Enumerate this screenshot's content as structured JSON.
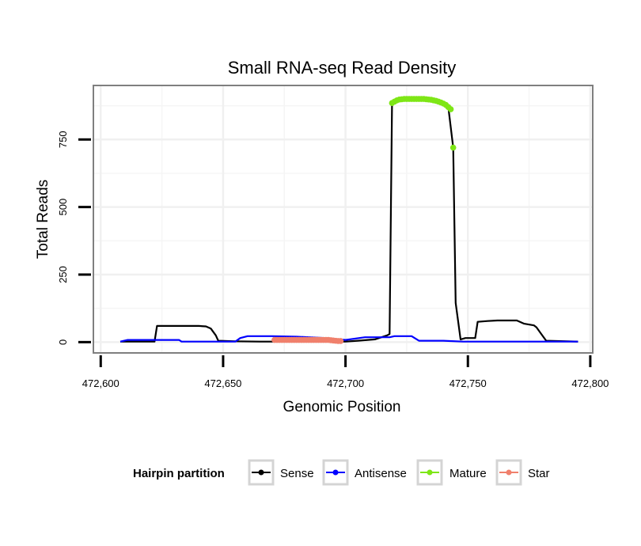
{
  "chart_data": {
    "type": "line",
    "title": "Small RNA-seq Read Density",
    "xlabel": "Genomic Position",
    "ylabel": "Total Reads",
    "xlim": [
      472597,
      472801
    ],
    "ylim": [
      -40,
      950
    ],
    "x_ticks": [
      472600,
      472650,
      472700,
      472750,
      472800
    ],
    "x_tick_labels": [
      "472,600",
      "472,650",
      "472,700",
      "472,750",
      "472,800"
    ],
    "y_ticks": [
      0,
      250,
      500,
      750
    ],
    "y_tick_labels": [
      "0",
      "250",
      "500",
      "750"
    ],
    "grid": true,
    "legend": {
      "title": "Hairpin partition",
      "position": "bottom",
      "entries": [
        "Sense",
        "Antisense",
        "Mature",
        "Star"
      ]
    },
    "series": [
      {
        "name": "Sense",
        "color": "#000000",
        "style": "line-with-dot-legend",
        "points": [
          [
            472608,
            2
          ],
          [
            472622,
            2
          ],
          [
            472623,
            60
          ],
          [
            472630,
            60
          ],
          [
            472640,
            60
          ],
          [
            472643,
            58
          ],
          [
            472645,
            50
          ],
          [
            472647,
            25
          ],
          [
            472648,
            5
          ],
          [
            472655,
            3
          ],
          [
            472665,
            2
          ],
          [
            472680,
            2
          ],
          [
            472700,
            2
          ],
          [
            472705,
            5
          ],
          [
            472712,
            10
          ],
          [
            472717,
            25
          ],
          [
            472718,
            30
          ],
          [
            472719,
            885
          ],
          [
            472720,
            890
          ],
          [
            472725,
            900
          ],
          [
            472735,
            900
          ],
          [
            472740,
            885
          ],
          [
            472742,
            870
          ],
          [
            472744,
            720
          ],
          [
            472745,
            145
          ],
          [
            472747,
            10
          ],
          [
            472749,
            15
          ],
          [
            472753,
            15
          ],
          [
            472754,
            75
          ],
          [
            472758,
            78
          ],
          [
            472762,
            80
          ],
          [
            472770,
            80
          ],
          [
            472773,
            68
          ],
          [
            472777,
            62
          ],
          [
            472778,
            55
          ],
          [
            472780,
            30
          ],
          [
            472782,
            5
          ],
          [
            472795,
            2
          ]
        ]
      },
      {
        "name": "Antisense",
        "color": "#0000ff",
        "style": "line",
        "points": [
          [
            472608,
            2
          ],
          [
            472611,
            8
          ],
          [
            472620,
            8
          ],
          [
            472632,
            8
          ],
          [
            472633,
            2
          ],
          [
            472655,
            2
          ],
          [
            472657,
            15
          ],
          [
            472660,
            22
          ],
          [
            472670,
            22
          ],
          [
            472680,
            20
          ],
          [
            472685,
            18
          ],
          [
            472692,
            15
          ],
          [
            472700,
            8
          ],
          [
            472708,
            18
          ],
          [
            472718,
            18
          ],
          [
            472720,
            22
          ],
          [
            472727,
            22
          ],
          [
            472730,
            5
          ],
          [
            472740,
            5
          ],
          [
            472748,
            2
          ],
          [
            472760,
            2
          ],
          [
            472780,
            2
          ],
          [
            472795,
            2
          ]
        ]
      },
      {
        "name": "Mature",
        "color": "#7ee616",
        "style": "points",
        "points": [
          [
            472719,
            885
          ],
          [
            472720,
            890
          ],
          [
            472721,
            895
          ],
          [
            472722,
            898
          ],
          [
            472723,
            899
          ],
          [
            472724,
            900
          ],
          [
            472725,
            900
          ],
          [
            472726,
            900
          ],
          [
            472727,
            900
          ],
          [
            472728,
            900
          ],
          [
            472729,
            900
          ],
          [
            472730,
            900
          ],
          [
            472731,
            900
          ],
          [
            472732,
            900
          ],
          [
            472733,
            899
          ],
          [
            472734,
            898
          ],
          [
            472735,
            897
          ],
          [
            472736,
            895
          ],
          [
            472737,
            893
          ],
          [
            472738,
            890
          ],
          [
            472739,
            887
          ],
          [
            472740,
            883
          ],
          [
            472741,
            878
          ],
          [
            472742,
            870
          ],
          [
            472743,
            862
          ],
          [
            472744,
            720
          ]
        ]
      },
      {
        "name": "Star",
        "color": "#f0806c",
        "style": "points",
        "points": [
          [
            472671,
            8
          ],
          [
            472672,
            8
          ],
          [
            472673,
            8
          ],
          [
            472674,
            8
          ],
          [
            472675,
            8
          ],
          [
            472676,
            8
          ],
          [
            472677,
            8
          ],
          [
            472678,
            8
          ],
          [
            472679,
            8
          ],
          [
            472680,
            8
          ],
          [
            472681,
            8
          ],
          [
            472682,
            8
          ],
          [
            472683,
            8
          ],
          [
            472684,
            8
          ],
          [
            472685,
            8
          ],
          [
            472686,
            8
          ],
          [
            472687,
            8
          ],
          [
            472688,
            8
          ],
          [
            472689,
            8
          ],
          [
            472690,
            8
          ],
          [
            472691,
            8
          ],
          [
            472692,
            8
          ],
          [
            472693,
            8
          ],
          [
            472694,
            7
          ],
          [
            472695,
            6
          ],
          [
            472696,
            5
          ],
          [
            472697,
            4
          ],
          [
            472698,
            4
          ]
        ]
      }
    ]
  }
}
